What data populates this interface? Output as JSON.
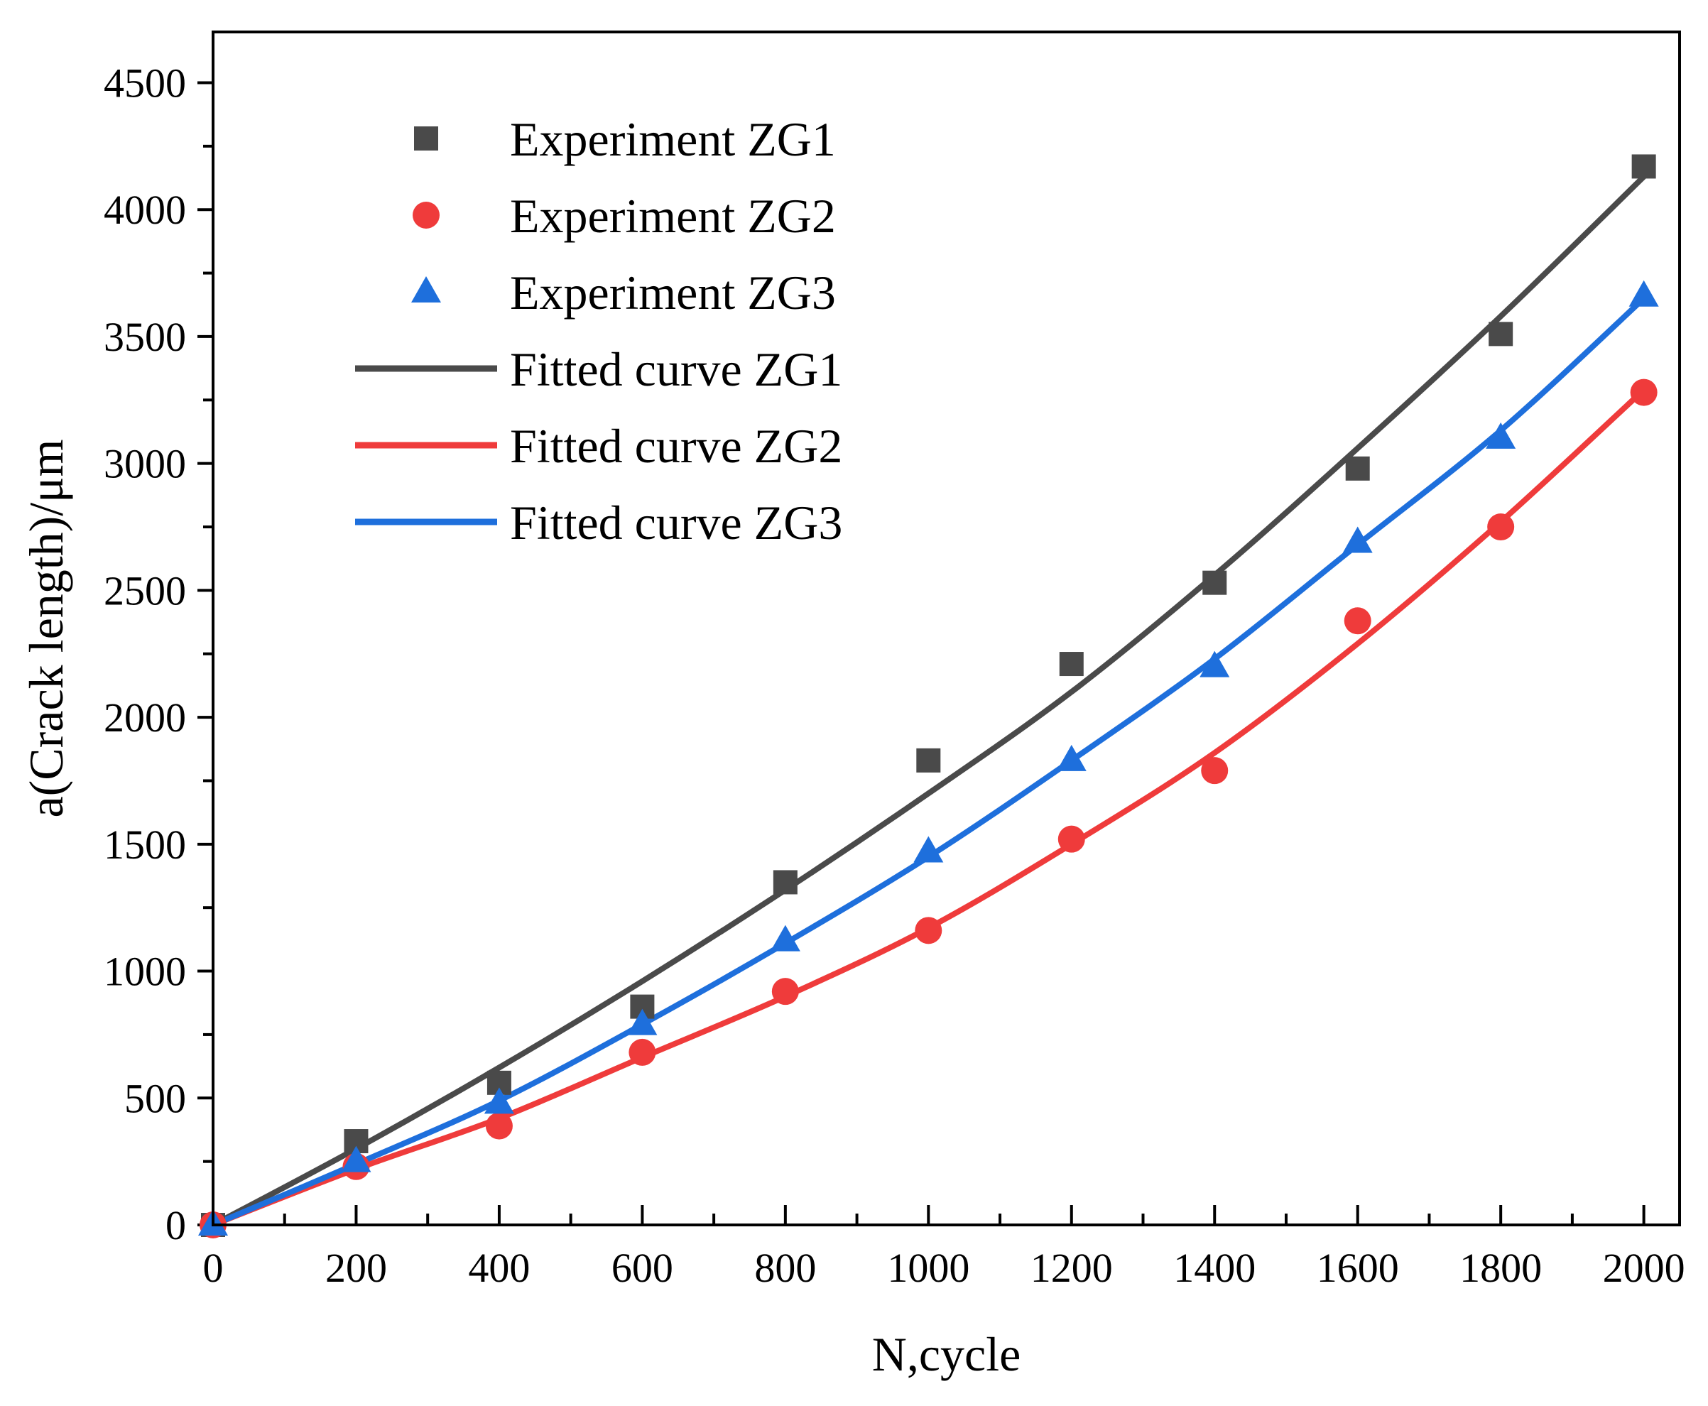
{
  "chart_data": {
    "type": "scatter",
    "title": "",
    "xlabel": "N,cycle",
    "ylabel": "a(Crack length)/μm",
    "xlim": [
      0,
      2050
    ],
    "ylim": [
      0,
      4700
    ],
    "xticks": [
      0,
      200,
      400,
      600,
      800,
      1000,
      1200,
      1400,
      1600,
      1800,
      2000
    ],
    "xtick_labels": [
      "0",
      "200",
      "400",
      "600",
      "800",
      "1000",
      "1200",
      "1400",
      "1600",
      "1800",
      "2000"
    ],
    "yticks": [
      0,
      500,
      1000,
      1500,
      2000,
      2500,
      3000,
      3500,
      4000,
      4500
    ],
    "ytick_labels": [
      "0",
      "500",
      "1000",
      "1500",
      "2000",
      "2500",
      "3000",
      "3500",
      "4000",
      "4500"
    ],
    "grid": false,
    "legend_position": "top-left",
    "x": [
      0,
      200,
      400,
      600,
      800,
      1000,
      1200,
      1400,
      1600,
      1800,
      2000
    ],
    "series": [
      {
        "name": "Experiment ZG1",
        "kind": "scatter",
        "marker": "square",
        "color": "#4a4a4a",
        "values": [
          0,
          330,
          560,
          860,
          1350,
          1830,
          2210,
          2530,
          2980,
          3510,
          4170
        ]
      },
      {
        "name": "Experiment ZG2",
        "kind": "scatter",
        "marker": "circle",
        "color": "#ef3b3b",
        "values": [
          0,
          230,
          390,
          680,
          920,
          1160,
          1520,
          1790,
          2380,
          2750,
          3280
        ]
      },
      {
        "name": "Experiment ZG3",
        "kind": "scatter",
        "marker": "triangle",
        "color": "#1e6fdc",
        "values": [
          0,
          250,
          480,
          790,
          1120,
          1470,
          1830,
          2200,
          2690,
          3100,
          3660
        ]
      },
      {
        "name": "Fitted curve ZG1",
        "kind": "line",
        "color": "#4a4a4a",
        "values": [
          0,
          300,
          620,
          960,
          1320,
          1700,
          2100,
          2560,
          3060,
          3580,
          4130
        ]
      },
      {
        "name": "Fitted curve ZG2",
        "kind": "line",
        "color": "#ef3b3b",
        "values": [
          0,
          220,
          420,
          660,
          900,
          1170,
          1500,
          1860,
          2290,
          2770,
          3290
        ]
      },
      {
        "name": "Fitted curve ZG3",
        "kind": "line",
        "color": "#1e6fdc",
        "values": [
          0,
          240,
          490,
          790,
          1110,
          1450,
          1830,
          2230,
          2680,
          3130,
          3650
        ]
      }
    ]
  }
}
